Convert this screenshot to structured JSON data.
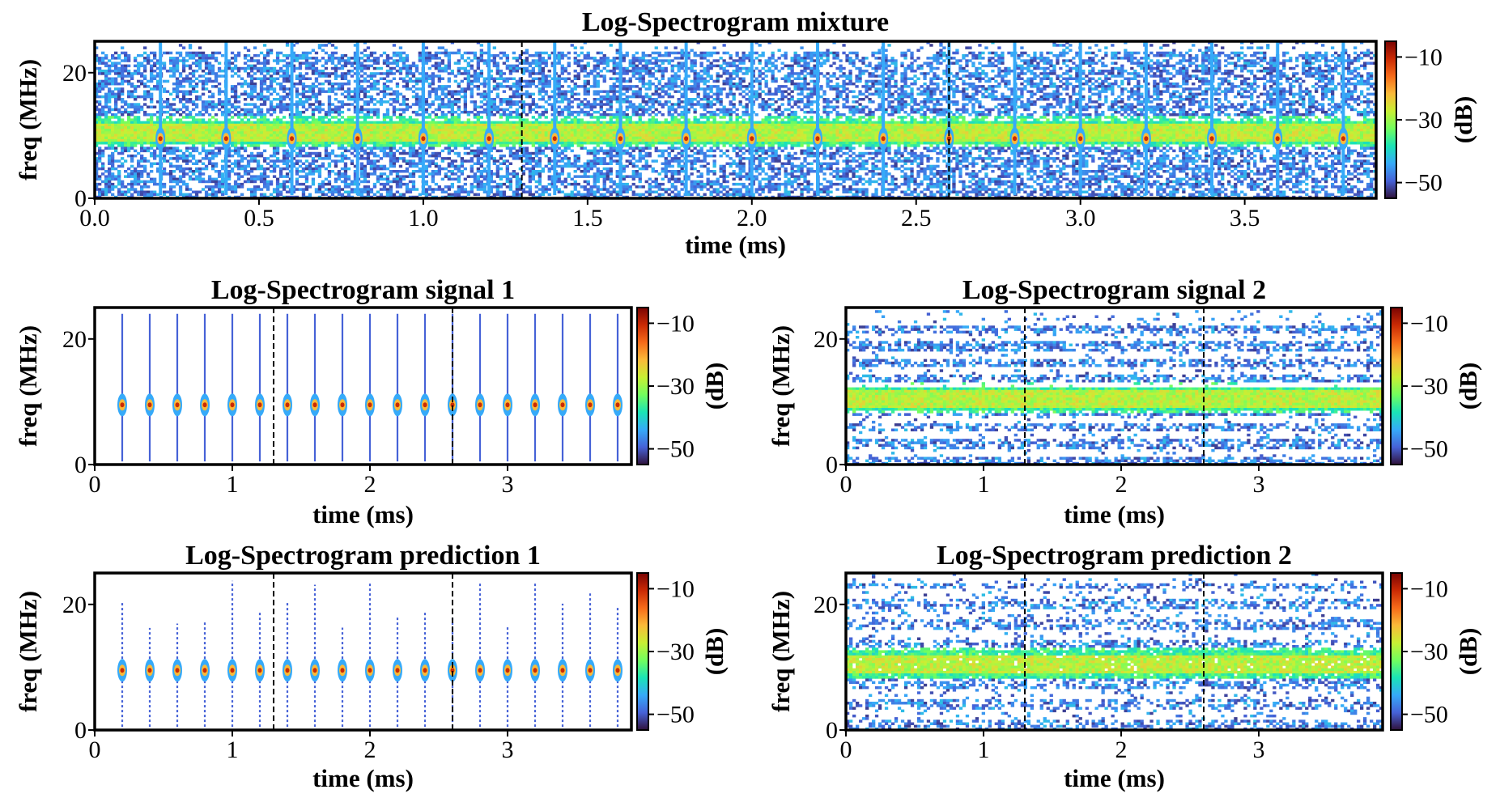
{
  "chart_data": [
    {
      "type": "heatmap",
      "title": "Log-Spectrogram mixture",
      "xlabel": "time (ms)",
      "ylabel": "freq (MHz)",
      "cbar_label": "(dB)",
      "xlim": [
        0,
        3.9
      ],
      "ylim": [
        0,
        25
      ],
      "xticks": [
        0.0,
        0.5,
        1.0,
        1.5,
        2.0,
        2.5,
        3.0,
        3.5
      ],
      "xtick_labels": [
        "0.0",
        "0.5",
        "1.0",
        "1.5",
        "2.0",
        "2.5",
        "3.0",
        "3.5"
      ],
      "yticks": [
        0,
        20
      ],
      "ytick_labels": [
        "0",
        "20"
      ],
      "cbar_ticks": [
        -10,
        -30,
        -50
      ],
      "cbar_tick_labels": [
        "−10",
        "−30",
        "−50"
      ],
      "cbar_range": [
        -55,
        -5
      ],
      "dashed_lines_at": [
        1.3,
        2.6
      ],
      "pulse_times": [
        0.2,
        0.4,
        0.6,
        0.8,
        1.0,
        1.2,
        1.4,
        1.6,
        1.8,
        2.0,
        2.2,
        2.4,
        2.6,
        2.8,
        3.0,
        3.2,
        3.4,
        3.6,
        3.8
      ],
      "pulse_freq": 9.5,
      "band_center_freq": 10.5
    },
    {
      "type": "heatmap",
      "title": "Log-Spectrogram signal 1",
      "xlabel": "time (ms)",
      "ylabel": "freq (MHz)",
      "cbar_label": "(dB)",
      "xlim": [
        0,
        3.9
      ],
      "ylim": [
        0,
        25
      ],
      "xticks": [
        0,
        1,
        2,
        3
      ],
      "xtick_labels": [
        "0",
        "1",
        "2",
        "3"
      ],
      "yticks": [
        0,
        20
      ],
      "ytick_labels": [
        "0",
        "20"
      ],
      "cbar_ticks": [
        -10,
        -30,
        -50
      ],
      "cbar_tick_labels": [
        "−10",
        "−30",
        "−50"
      ],
      "cbar_range": [
        -55,
        -5
      ],
      "dashed_lines_at": [
        1.3,
        2.6
      ],
      "pulse_times": [
        0.2,
        0.4,
        0.6,
        0.8,
        1.0,
        1.2,
        1.4,
        1.6,
        1.8,
        2.0,
        2.2,
        2.4,
        2.6,
        2.8,
        3.0,
        3.2,
        3.4,
        3.6,
        3.8
      ],
      "pulse_freq": 9.5
    },
    {
      "type": "heatmap",
      "title": "Log-Spectrogram signal 2",
      "xlabel": "time (ms)",
      "ylabel": "freq (MHz)",
      "cbar_label": "(dB)",
      "xlim": [
        0,
        3.9
      ],
      "ylim": [
        0,
        25
      ],
      "xticks": [
        0,
        1,
        2,
        3
      ],
      "xtick_labels": [
        "0",
        "1",
        "2",
        "3"
      ],
      "yticks": [
        0,
        20
      ],
      "ytick_labels": [
        "0",
        "20"
      ],
      "cbar_ticks": [
        -10,
        -30,
        -50
      ],
      "cbar_tick_labels": [
        "−10",
        "−30",
        "−50"
      ],
      "cbar_range": [
        -55,
        -5
      ],
      "dashed_lines_at": [
        1.3,
        2.6
      ],
      "band_center_freq": 10.5
    },
    {
      "type": "heatmap",
      "title": "Log-Spectrogram prediction 1",
      "xlabel": "time (ms)",
      "ylabel": "freq (MHz)",
      "cbar_label": "(dB)",
      "xlim": [
        0,
        3.9
      ],
      "ylim": [
        0,
        25
      ],
      "xticks": [
        0,
        1,
        2,
        3
      ],
      "xtick_labels": [
        "0",
        "1",
        "2",
        "3"
      ],
      "yticks": [
        0,
        20
      ],
      "ytick_labels": [
        "0",
        "20"
      ],
      "cbar_ticks": [
        -10,
        -30,
        -50
      ],
      "cbar_tick_labels": [
        "−10",
        "−30",
        "−50"
      ],
      "cbar_range": [
        -55,
        -5
      ],
      "dashed_lines_at": [
        1.3,
        2.6
      ],
      "pulse_times": [
        0.2,
        0.4,
        0.6,
        0.8,
        1.0,
        1.2,
        1.4,
        1.6,
        1.8,
        2.0,
        2.2,
        2.4,
        2.6,
        2.8,
        3.0,
        3.2,
        3.4,
        3.6,
        3.8
      ],
      "pulse_freq": 9.5
    },
    {
      "type": "heatmap",
      "title": "Log-Spectrogram prediction 2",
      "xlabel": "time (ms)",
      "ylabel": "freq (MHz)",
      "cbar_label": "(dB)",
      "xlim": [
        0,
        3.9
      ],
      "ylim": [
        0,
        25
      ],
      "xticks": [
        0,
        1,
        2,
        3
      ],
      "xtick_labels": [
        "0",
        "1",
        "2",
        "3"
      ],
      "yticks": [
        0,
        20
      ],
      "ytick_labels": [
        "0",
        "20"
      ],
      "cbar_ticks": [
        -10,
        -30,
        -50
      ],
      "cbar_tick_labels": [
        "−10",
        "−30",
        "−50"
      ],
      "cbar_range": [
        -55,
        -5
      ],
      "dashed_lines_at": [
        1.3,
        2.6
      ],
      "band_center_freq": 10.5
    }
  ],
  "colormap": [
    "#30123b",
    "#4662d7",
    "#36aaf9",
    "#1ae4b6",
    "#72fe5e",
    "#c8ef34",
    "#faba39",
    "#f66b19",
    "#ca2a04",
    "#7a0403"
  ]
}
